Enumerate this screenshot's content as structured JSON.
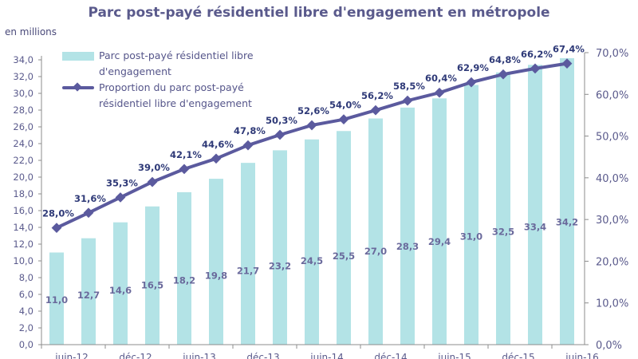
{
  "chart_data": {
    "type": "bar",
    "title": "Parc post-payé résidentiel libre d'engagement en métropole",
    "ylabel": "en millions",
    "ylim": [
      0,
      34
    ],
    "y2lim": [
      0,
      70
    ],
    "left_ticks": [
      "0,0",
      "2,0",
      "4,0",
      "6,0",
      "8,0",
      "10,0",
      "12,0",
      "14,0",
      "16,0",
      "18,0",
      "20,0",
      "22,0",
      "24,0",
      "26,0",
      "28,0",
      "30,0",
      "32,0",
      "34,0"
    ],
    "right_ticks": [
      "0,0%",
      "10,0%",
      "20,0%",
      "30,0%",
      "40,0%",
      "50,0%",
      "60,0%",
      "70,0%"
    ],
    "x_tick_labels": [
      "juin-12",
      "déc-12",
      "juin-13",
      "déc-13",
      "juin-14",
      "déc-14",
      "juin-15",
      "déc-15",
      "juin-16"
    ],
    "legend_position": "top-left",
    "series": [
      {
        "name": "Parc post-payé résidentiel libre d'engagement",
        "type": "bar",
        "axis": "left",
        "color": "#b3e3e6",
        "values": [
          11.0,
          12.7,
          14.6,
          16.5,
          18.2,
          19.8,
          21.7,
          23.2,
          24.5,
          25.5,
          27.0,
          28.3,
          29.4,
          31.0,
          32.5,
          33.4,
          34.2
        ],
        "labels": [
          "11,0",
          "12,7",
          "14,6",
          "16,5",
          "18,2",
          "19,8",
          "21,7",
          "23,2",
          "24,5",
          "25,5",
          "27,0",
          "28,3",
          "29,4",
          "31,0",
          "32,5",
          "33,4",
          "34,2"
        ]
      },
      {
        "name": "Proportion du parc post-payé résidentiel libre d'engagement",
        "type": "line",
        "axis": "right",
        "color": "#5b5a9e",
        "values": [
          28.0,
          31.6,
          35.3,
          39.0,
          42.1,
          44.6,
          47.8,
          50.3,
          52.6,
          54.0,
          56.2,
          58.5,
          60.4,
          62.9,
          64.8,
          66.2,
          67.4
        ],
        "labels": [
          "28,0%",
          "31,6%",
          "35,3%",
          "39,0%",
          "42,1%",
          "44,6%",
          "47,8%",
          "50,3%",
          "52,6%",
          "54,0%",
          "56,2%",
          "58,5%",
          "60,4%",
          "62,9%",
          "64,8%",
          "66,2%",
          "67,4%"
        ]
      }
    ]
  },
  "legend": {
    "bar_label_line1": "Parc post-payé résidentiel libre",
    "bar_label_line2": "d'engagement",
    "line_label_line1": "Proportion du parc post-payé",
    "line_label_line2": "résidentiel libre d'engagement"
  }
}
